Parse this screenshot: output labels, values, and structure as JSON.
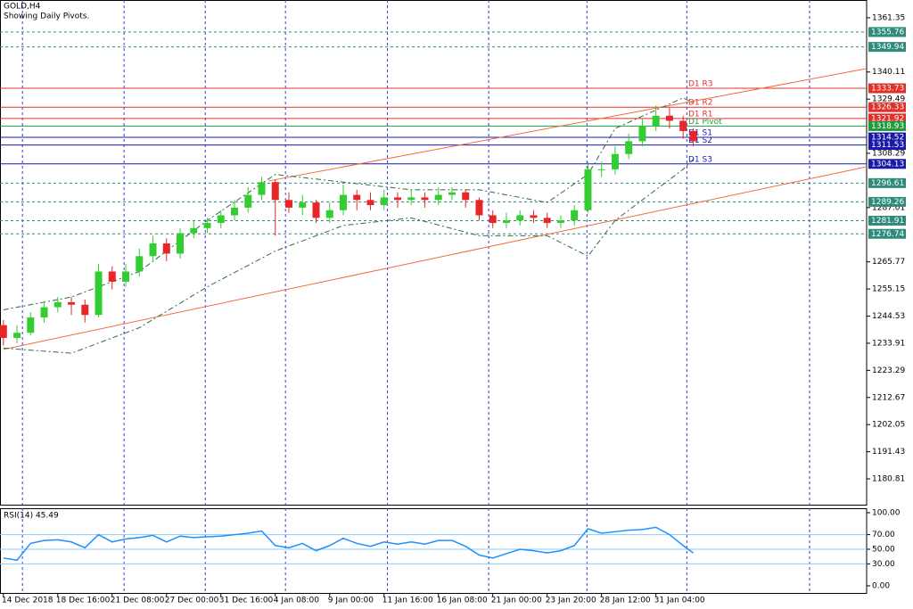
{
  "chart_data": {
    "type": "candlestick",
    "title": "GOLD,H4",
    "subtitle": "Showing Daily Pivots.",
    "up_color": "#32cd32",
    "down_color": "#e8262a",
    "xlim": [
      -1,
      254
    ],
    "ylim": [
      1170.7,
      1368.3
    ],
    "yticks": [
      1361.35,
      1340.11,
      1329.49,
      1308.29,
      1287.01,
      1265.77,
      1255.15,
      1244.53,
      1233.91,
      1223.29,
      1212.67,
      1202.05,
      1191.43,
      1180.81
    ],
    "xticks": [
      {
        "value": 0,
        "label": "14 Dec 2018"
      },
      {
        "value": 16,
        "label": "18 Dec 16:00"
      },
      {
        "value": 32,
        "label": "21 Dec 08:00"
      },
      {
        "value": 48,
        "label": "27 Dec 00:00"
      },
      {
        "value": 64,
        "label": "31 Dec 16:00"
      },
      {
        "value": 80,
        "label": "4 Jan 08:00"
      },
      {
        "value": 96,
        "label": "9 Jan 00:00"
      },
      {
        "value": 112,
        "label": "11 Jan 16:00"
      },
      {
        "value": 128,
        "label": "16 Jan 08:00"
      },
      {
        "value": 144,
        "label": "21 Jan 00:00"
      },
      {
        "value": 160,
        "label": "23 Jan 20:00"
      },
      {
        "value": 176,
        "label": "28 Jan 12:00"
      },
      {
        "value": 192,
        "label": "31 Jan 04:00"
      }
    ],
    "xgrid": [
      5.6,
      35.5,
      59.4,
      83,
      113,
      142.8,
      171.7,
      201.1,
      237.2
    ],
    "x": [
      0,
      4,
      8,
      12,
      16,
      20,
      24,
      28,
      32,
      36,
      40,
      44,
      48,
      52,
      56,
      60,
      64,
      68,
      72,
      76,
      80,
      84,
      88,
      92,
      96,
      100,
      104,
      108,
      112,
      116,
      120,
      124,
      128,
      132,
      136,
      140,
      144,
      148,
      152,
      156,
      160,
      164,
      168,
      172,
      176,
      180,
      184,
      188,
      192,
      196,
      200,
      203
    ],
    "open": [
      1241,
      1236,
      1238,
      1244,
      1248,
      1250,
      1249,
      1245,
      1262,
      1258,
      1262,
      1268,
      1273,
      1269,
      1277,
      1279,
      1281,
      1284,
      1287,
      1292,
      1297,
      1290,
      1287,
      1289,
      1283,
      1286,
      1292,
      1290,
      1288,
      1291,
      1290,
      1291,
      1290,
      1292,
      1293,
      1290,
      1284,
      1281,
      1282,
      1284,
      1283,
      1281,
      1282,
      1286,
      1302,
      1302,
      1308,
      1313,
      1319,
      1323,
      1321,
      1317
    ],
    "high": [
      1243,
      1241,
      1246,
      1250,
      1252,
      1252,
      1251,
      1265,
      1264,
      1265,
      1271,
      1276,
      1275,
      1279,
      1282,
      1283,
      1286,
      1290,
      1295,
      1299,
      1298,
      1293,
      1292,
      1290,
      1289,
      1296,
      1294,
      1293,
      1294,
      1293,
      1294,
      1293,
      1295,
      1295,
      1294,
      1291,
      1286,
      1285,
      1286,
      1286,
      1285,
      1284,
      1288,
      1305,
      1305,
      1311,
      1316,
      1322,
      1327,
      1326,
      1323,
      1318
    ],
    "low": [
      1233,
      1234,
      1237,
      1242,
      1246,
      1245,
      1242,
      1244,
      1255,
      1256,
      1260,
      1266,
      1266,
      1267,
      1275,
      1277,
      1279,
      1282,
      1285,
      1290,
      1276,
      1285,
      1284,
      1281,
      1281,
      1284,
      1286,
      1286,
      1286,
      1287,
      1288,
      1287,
      1288,
      1290,
      1287,
      1282,
      1279,
      1279,
      1280,
      1281,
      1279,
      1279,
      1280,
      1285,
      1299,
      1300,
      1306,
      1311,
      1317,
      1318,
      1314,
      1311
    ],
    "close": [
      1236,
      1238,
      1244,
      1248,
      1250,
      1249,
      1245,
      1262,
      1258,
      1262,
      1268,
      1273,
      1269,
      1277,
      1279,
      1281,
      1284,
      1287,
      1292,
      1297,
      1290,
      1287,
      1289,
      1283,
      1286,
      1292,
      1290,
      1288,
      1291,
      1290,
      1291,
      1290,
      1292,
      1293,
      1290,
      1284,
      1281,
      1282,
      1284,
      1283,
      1281,
      1282,
      1286,
      1302,
      1302,
      1308,
      1313,
      1319,
      1323,
      1321,
      1317,
      1313
    ],
    "bands": {
      "color": "#2e6b4a",
      "x": [
        0,
        20,
        40,
        60,
        80,
        100,
        120,
        140,
        160,
        172,
        180,
        200,
        203
      ],
      "upper": [
        1247,
        1252,
        1262,
        1282,
        1300,
        1297,
        1294,
        1294,
        1289,
        1300,
        1318,
        1330,
        1328
      ],
      "lower": [
        1232,
        1230,
        1240,
        1256,
        1270,
        1280,
        1283,
        1276,
        1276,
        1268,
        1282,
        1302,
        1306
      ]
    },
    "trendlines": [
      {
        "color": "#f26d3d",
        "x": [
          78,
          254
        ],
        "y": [
          1297.45,
          1341.45
        ]
      },
      {
        "color": "#f26d3d",
        "x": [
          0,
          254
        ],
        "y": [
          1231.5,
          1303.0
        ]
      }
    ],
    "levels": [
      {
        "value": 1355.76,
        "color": "#2e8b7a",
        "dashed": true
      },
      {
        "value": 1349.94,
        "color": "#2e8b7a",
        "dashed": true
      },
      {
        "value": 1333.73,
        "color": "#e0302a",
        "name": "D1 R3"
      },
      {
        "value": 1326.33,
        "color": "#e0302a",
        "name": "D1 R2"
      },
      {
        "value": 1321.92,
        "color": "#e0302a",
        "name": "D1 R1"
      },
      {
        "value": 1318.93,
        "color": "#1f9a3a",
        "name": "D1 Pivot"
      },
      {
        "value": 1314.52,
        "color": "#1a1aa8",
        "name": "D1 S1"
      },
      {
        "value": 1311.53,
        "color": "#1a1aa8",
        "name": "D1 S2"
      },
      {
        "value": 1304.13,
        "color": "#1a1aa8",
        "name": "D1 S3"
      },
      {
        "value": 1296.61,
        "color": "#2e8b7a",
        "dashed": true
      },
      {
        "value": 1289.26,
        "color": "#2e8b7a",
        "dashed": true
      },
      {
        "value": 1281.91,
        "color": "#2e8b7a",
        "dashed": true
      },
      {
        "value": 1276.74,
        "color": "#2e8b7a",
        "dashed": true
      }
    ],
    "rsi": {
      "title": "RSI(14) 45.49",
      "color": "#1e90ff",
      "level_color": "#87cefa",
      "ylim": [
        -9.8,
        106.1
      ],
      "yticks": [
        {
          "value": 100,
          "label": "100.00"
        },
        {
          "value": 70,
          "label": "70.00"
        },
        {
          "value": 50,
          "label": "50.00"
        },
        {
          "value": 30,
          "label": "30.00"
        },
        {
          "value": 0,
          "label": "0.00"
        }
      ],
      "levels": [
        70,
        50,
        30
      ],
      "values": [
        38,
        35,
        58,
        62,
        63,
        60,
        52,
        70,
        60,
        64,
        66,
        69,
        60,
        68,
        66,
        67,
        68,
        70,
        72,
        75,
        55,
        52,
        58,
        48,
        55,
        65,
        58,
        54,
        60,
        57,
        60,
        57,
        62,
        62,
        54,
        42,
        38,
        44,
        50,
        48,
        45,
        48,
        55,
        78,
        72,
        74,
        76,
        77,
        80,
        70,
        55,
        45
      ]
    }
  }
}
